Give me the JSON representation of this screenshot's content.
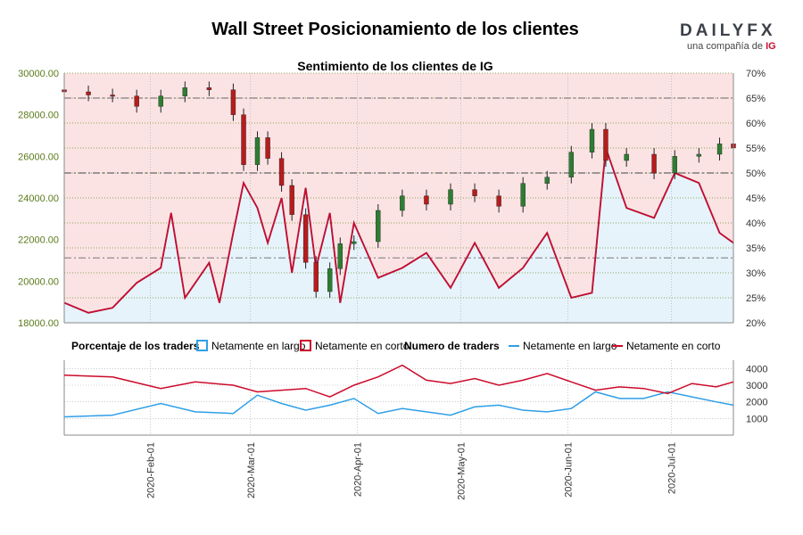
{
  "title": "Wall Street Posicionamiento de los clientes",
  "subtitle": "Sentimiento de los clientes de IG",
  "logo": {
    "brand": "DAILYFX",
    "tag": "una compañía de",
    "tag_brand": "IG"
  },
  "legend": {
    "pct_title": "Porcentaje de los traders",
    "pct_long": "Netamente en largo",
    "pct_short": "Netamente en corto",
    "num_title": "Numero de traders",
    "num_long": "Netamente en largo",
    "num_short": "Netamente en corto"
  },
  "colors": {
    "long": "#2f9fe6",
    "short": "#cc0a2a",
    "long_fill": "#e6f3fb",
    "short_fill": "#fbe3e4",
    "candle_up": "#2e7d32",
    "candle_down": "#b71c1c",
    "price_axis": "#5a7a1a"
  },
  "chart_data": {
    "type": "line",
    "x_range": [
      "2020-01-07",
      "2020-07-19"
    ],
    "x_ticks": [
      "2020-Feb-01",
      "2020-Mar-01",
      "2020-Apr-01",
      "2020-May-01",
      "2020-Jun-01",
      "2020-Jul-01"
    ],
    "price_axis": {
      "label": "Wall Street",
      "ylim": [
        18000,
        30000
      ],
      "ticks": [
        "18000.00",
        "20000.00",
        "22000.00",
        "24000.00",
        "26000.00",
        "28000.00",
        "30000.00"
      ]
    },
    "pct_axis": {
      "ylim": [
        20,
        70
      ],
      "ticks": [
        "20%",
        "25%",
        "30%",
        "35%",
        "40%",
        "45%",
        "50%",
        "55%",
        "60%",
        "65%",
        "70%"
      ],
      "ref_lines": [
        33,
        50,
        65
      ]
    },
    "traders_axis": {
      "ylim": [
        0,
        4500
      ],
      "ticks": [
        "1000",
        "2000",
        "3000",
        "4000"
      ]
    },
    "price_series": {
      "name": "Wall Street",
      "dates": [
        "2020-01-07",
        "2020-01-14",
        "2020-01-21",
        "2020-01-28",
        "2020-02-04",
        "2020-02-11",
        "2020-02-18",
        "2020-02-25",
        "2020-02-28",
        "2020-03-03",
        "2020-03-06",
        "2020-03-10",
        "2020-03-13",
        "2020-03-17",
        "2020-03-20",
        "2020-03-24",
        "2020-03-27",
        "2020-03-31",
        "2020-04-07",
        "2020-04-14",
        "2020-04-21",
        "2020-04-28",
        "2020-05-05",
        "2020-05-12",
        "2020-05-19",
        "2020-05-26",
        "2020-06-02",
        "2020-06-08",
        "2020-06-12",
        "2020-06-18",
        "2020-06-26",
        "2020-07-02",
        "2020-07-09",
        "2020-07-15",
        "2020-07-19"
      ],
      "close": [
        29100,
        28950,
        28900,
        28400,
        28900,
        29300,
        29200,
        28000,
        25600,
        26900,
        25900,
        24600,
        23200,
        20900,
        19500,
        20600,
        21800,
        21900,
        23400,
        24100,
        23700,
        24400,
        24100,
        23600,
        24700,
        25000,
        26200,
        27300,
        25800,
        26100,
        25200,
        26000,
        26100,
        26600,
        26400
      ]
    },
    "pct_series": {
      "dates": [
        "2020-01-07",
        "2020-01-14",
        "2020-01-21",
        "2020-01-28",
        "2020-02-04",
        "2020-02-07",
        "2020-02-11",
        "2020-02-18",
        "2020-02-21",
        "2020-02-25",
        "2020-02-28",
        "2020-03-03",
        "2020-03-06",
        "2020-03-10",
        "2020-03-13",
        "2020-03-17",
        "2020-03-20",
        "2020-03-24",
        "2020-03-27",
        "2020-03-31",
        "2020-04-07",
        "2020-04-14",
        "2020-04-21",
        "2020-04-28",
        "2020-05-05",
        "2020-05-12",
        "2020-05-19",
        "2020-05-26",
        "2020-06-02",
        "2020-06-08",
        "2020-06-12",
        "2020-06-18",
        "2020-06-26",
        "2020-07-02",
        "2020-07-09",
        "2020-07-15",
        "2020-07-19"
      ],
      "long": [
        76,
        78,
        77,
        72,
        69,
        58,
        75,
        68,
        76,
        62,
        52,
        57,
        64,
        55,
        70,
        53,
        69,
        58,
        76,
        60,
        71,
        69,
        66,
        73,
        64,
        73,
        69,
        62,
        75,
        74,
        45,
        57,
        59,
        50,
        52,
        62,
        64
      ],
      "short": [
        24,
        22,
        23,
        28,
        31,
        42,
        25,
        32,
        24,
        38,
        48,
        43,
        36,
        45,
        30,
        47,
        31,
        42,
        24,
        40,
        29,
        31,
        34,
        27,
        36,
        27,
        31,
        38,
        25,
        26,
        55,
        43,
        41,
        50,
        48,
        38,
        36
      ]
    },
    "traders_series": {
      "dates": [
        "2020-01-07",
        "2020-01-21",
        "2020-02-04",
        "2020-02-14",
        "2020-02-25",
        "2020-03-03",
        "2020-03-10",
        "2020-03-17",
        "2020-03-24",
        "2020-03-31",
        "2020-04-07",
        "2020-04-14",
        "2020-04-21",
        "2020-04-28",
        "2020-05-05",
        "2020-05-12",
        "2020-05-19",
        "2020-05-26",
        "2020-06-02",
        "2020-06-09",
        "2020-06-16",
        "2020-06-23",
        "2020-06-30",
        "2020-07-07",
        "2020-07-14",
        "2020-07-19"
      ],
      "long": [
        1100,
        1200,
        1900,
        1400,
        1300,
        2400,
        1900,
        1500,
        1800,
        2200,
        1300,
        1600,
        1400,
        1200,
        1700,
        1800,
        1500,
        1400,
        1600,
        2600,
        2200,
        2200,
        2600,
        2300,
        2000,
        1800
      ],
      "short": [
        3600,
        3500,
        2800,
        3200,
        3000,
        2600,
        2700,
        2800,
        2300,
        3000,
        3500,
        4200,
        3300,
        3100,
        3400,
        3000,
        3300,
        3700,
        3200,
        2700,
        2900,
        2800,
        2500,
        3100,
        2900,
        3200
      ]
    }
  }
}
